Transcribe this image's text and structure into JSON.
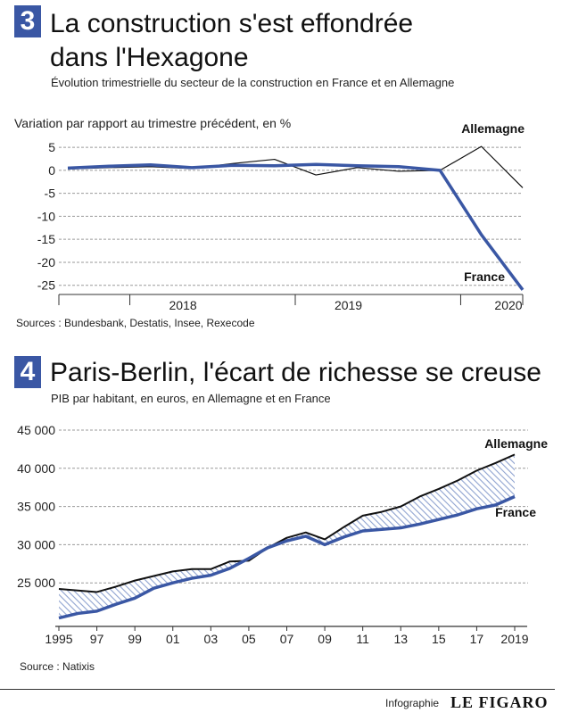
{
  "section1": {
    "number": "3",
    "title_line1": "La construction s'est effondrée",
    "title_line2": "dans l'Hexagone",
    "subtitle": "Évolution trimestrielle du secteur de la construction en France et en Allemagne",
    "ylabel": "Variation par rapport au trimestre précédent, en %",
    "source": "Sources : Bundesbank, Destatis, Insee, Rexecode"
  },
  "section2": {
    "number": "4",
    "title": "Paris-Berlin, l'écart de richesse se creuse",
    "subtitle": "PIB par habitant, en euros, en Allemagne et en France",
    "source": "Source : Natixis"
  },
  "footer": {
    "label": "Infographie",
    "brand": "LE FIGARO"
  },
  "colors": {
    "france": "#3a57a4",
    "germany": "#111111",
    "grid": "#9a9a9a",
    "hatch": "#8fa3d0"
  },
  "chart_data": [
    {
      "type": "line",
      "x": [
        0,
        1,
        2,
        3,
        4,
        5,
        6,
        7,
        8,
        9,
        10,
        11,
        12
      ],
      "y_ticks": [
        5,
        0,
        -5,
        -10,
        -15,
        -20,
        -25
      ],
      "x_tick_labels": [
        {
          "pos": 3,
          "label": "2018"
        },
        {
          "pos": 7,
          "label": "2019"
        },
        {
          "pos": 11,
          "label": "2020"
        }
      ],
      "ylim": [
        -27,
        6
      ],
      "series": [
        {
          "name": "Allemagne",
          "values": [
            0.3,
            0.6,
            0.8,
            0.4,
            1.5,
            2.4,
            -1.0,
            0.6,
            -0.2,
            0.0,
            5.2,
            -3.8,
            null
          ]
        },
        {
          "name": "France",
          "values": [
            0.5,
            0.9,
            1.2,
            0.6,
            1.1,
            1.0,
            1.3,
            1.0,
            0.8,
            0.0,
            -14.0,
            -26.0,
            null
          ]
        }
      ]
    },
    {
      "type": "area",
      "x": [
        1995,
        1996,
        1997,
        1998,
        1999,
        2000,
        2001,
        2002,
        2003,
        2004,
        2005,
        2006,
        2007,
        2008,
        2009,
        2010,
        2011,
        2012,
        2013,
        2014,
        2015,
        2016,
        2017,
        2018,
        2019
      ],
      "x_tick_labels": [
        "1995",
        "97",
        "99",
        "01",
        "03",
        "05",
        "07",
        "09",
        "11",
        "13",
        "15",
        "17",
        "2019"
      ],
      "y_ticks": [
        "45 000",
        "40 000",
        "35 000",
        "30 000",
        "25 000"
      ],
      "y_tick_values": [
        45000,
        40000,
        35000,
        30000,
        25000
      ],
      "ylim": [
        19500,
        46500
      ],
      "series": [
        {
          "name": "Allemagne",
          "values": [
            24200,
            24000,
            23800,
            24500,
            25300,
            25900,
            26500,
            26800,
            26800,
            27800,
            27900,
            29600,
            30900,
            31600,
            30700,
            32300,
            33800,
            34300,
            35000,
            36300,
            37300,
            38400,
            39700,
            40700,
            41800
          ]
        },
        {
          "name": "France",
          "values": [
            20400,
            21000,
            21300,
            22200,
            23000,
            24300,
            25000,
            25600,
            26000,
            26900,
            28200,
            29600,
            30500,
            31100,
            30000,
            31000,
            31800,
            32000,
            32200,
            32700,
            33300,
            33900,
            34700,
            35200,
            36300
          ]
        }
      ]
    }
  ]
}
